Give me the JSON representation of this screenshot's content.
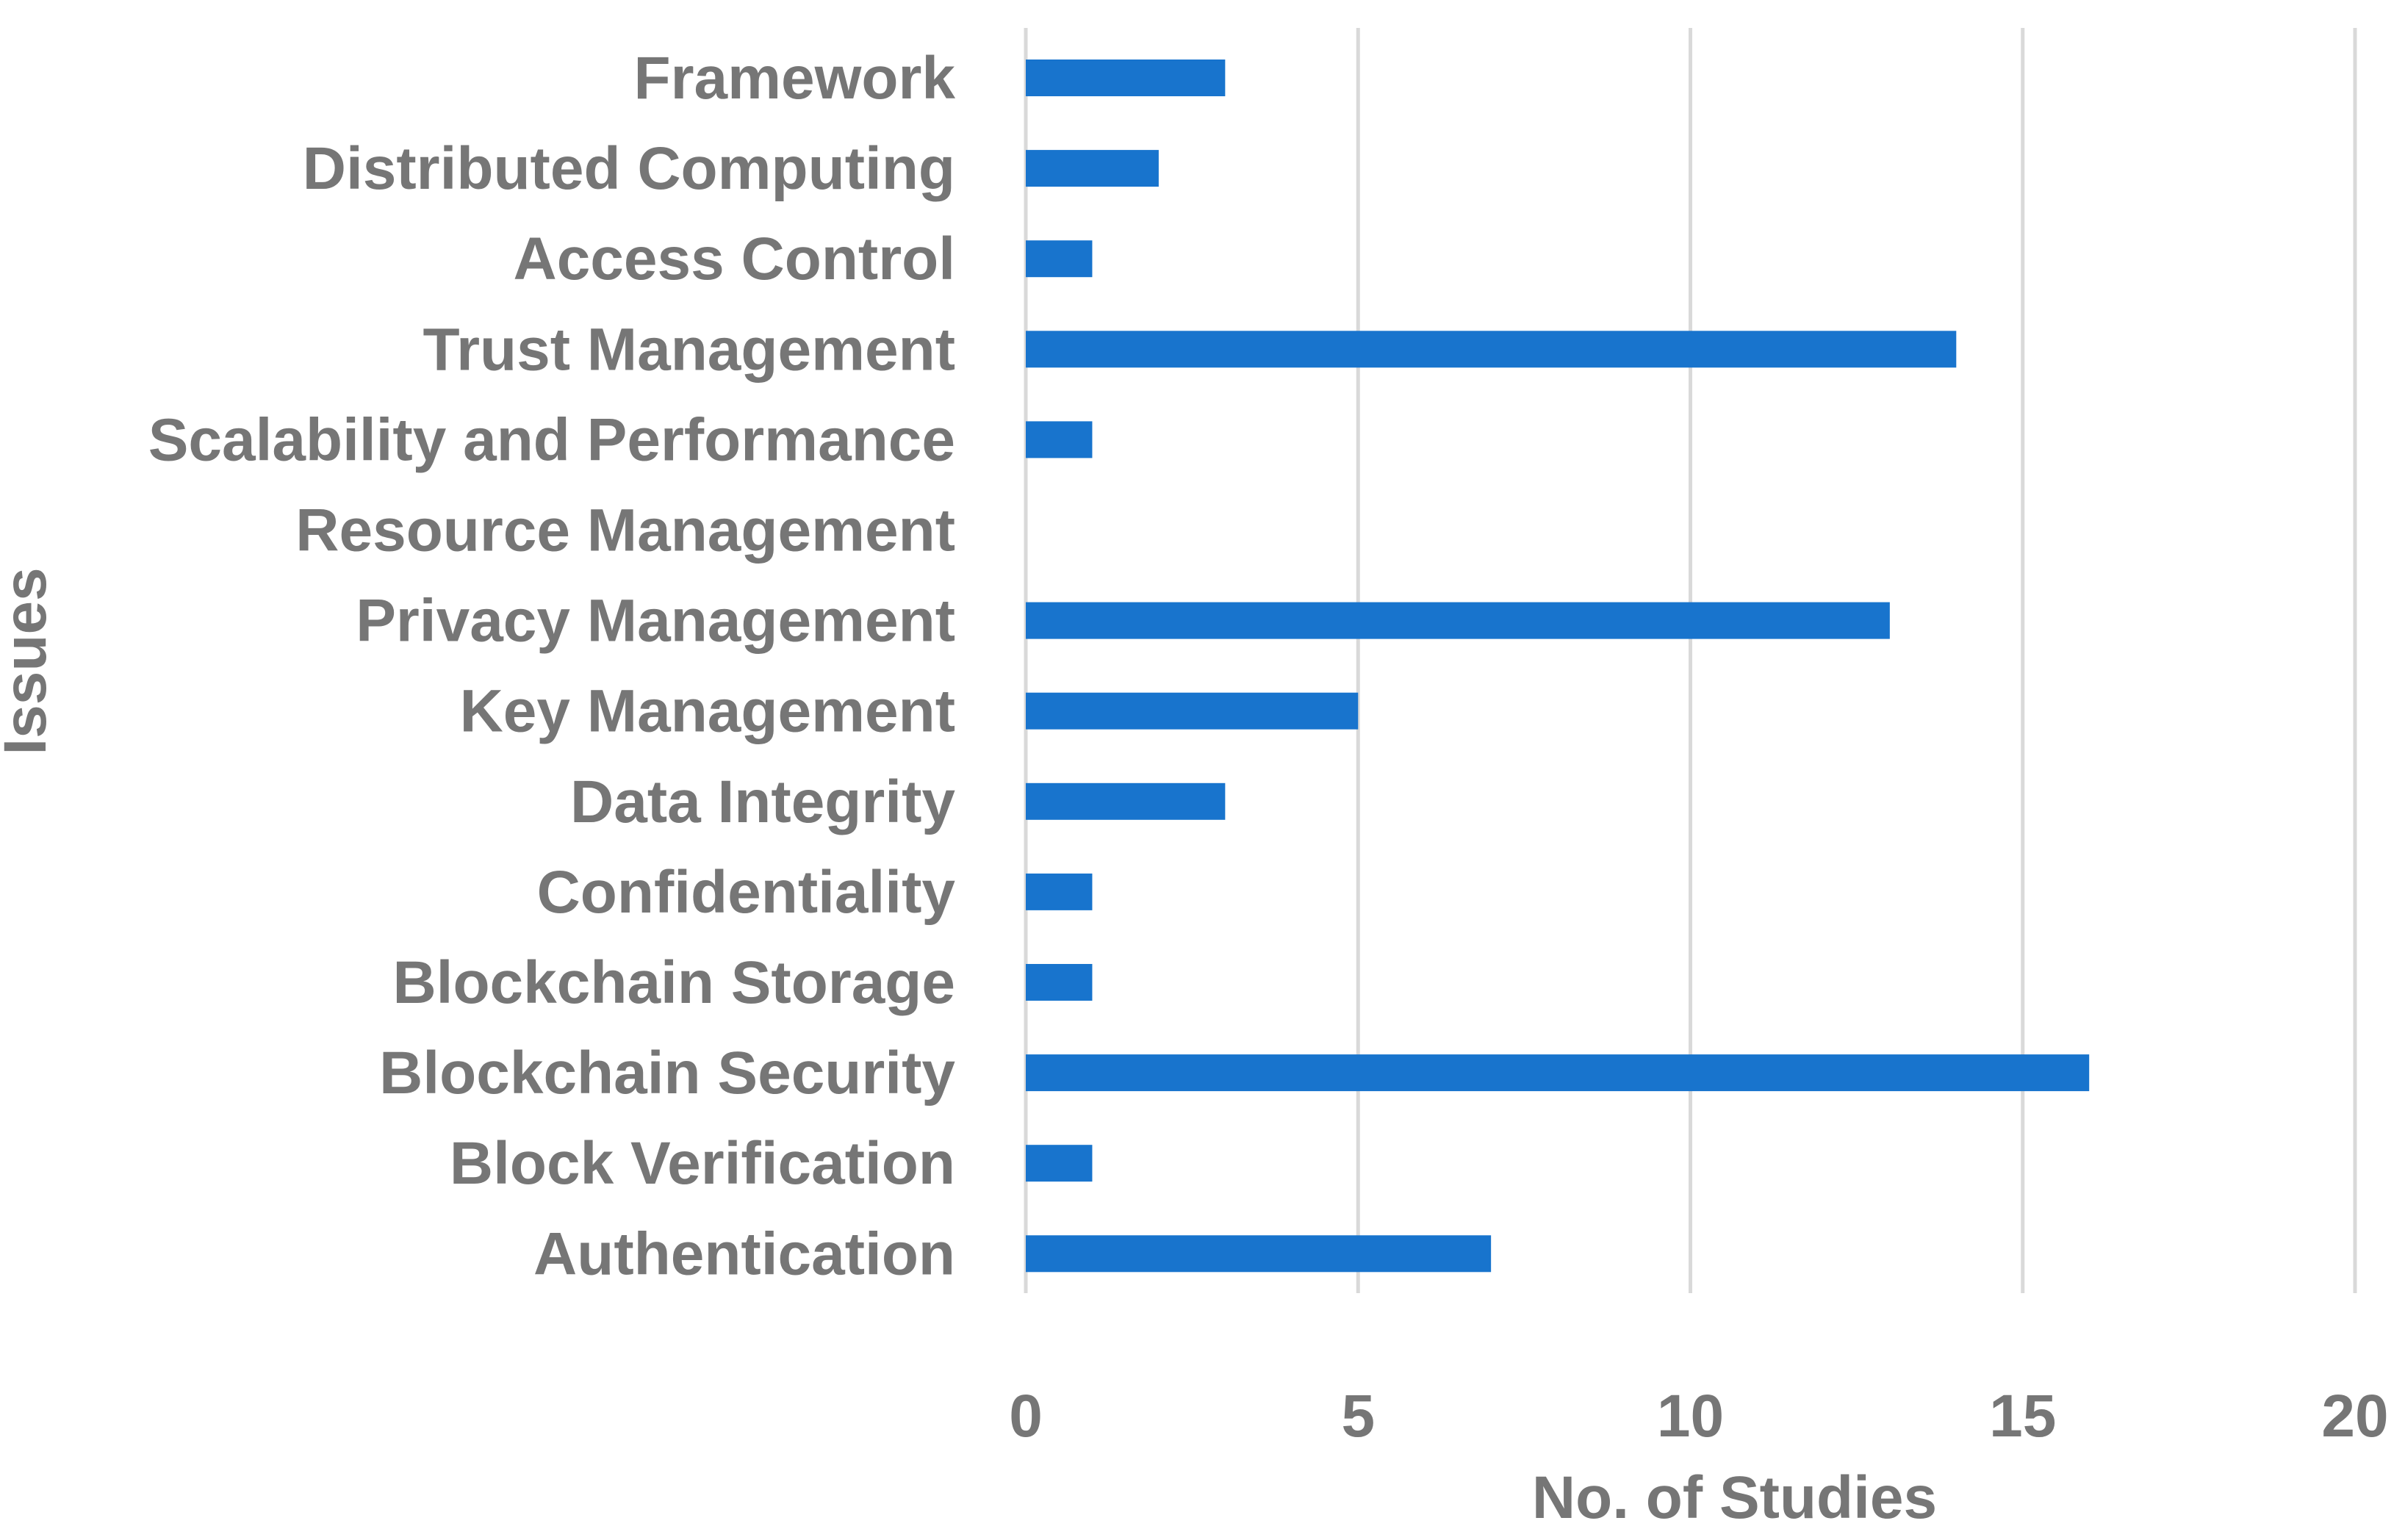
{
  "chart_data": {
    "type": "bar",
    "orientation": "horizontal",
    "categories": [
      "Framework",
      "Distributed Computing",
      "Access Control",
      "Trust Management",
      "Scalability and Performance",
      "Resource Management",
      "Privacy Management",
      "Key Management",
      "Data Integrity",
      "Confidentiality",
      "Blockchain Storage",
      "Blockchain Security",
      "Block Verification",
      "Authentication"
    ],
    "values": [
      3,
      2,
      1,
      14,
      1,
      0,
      13,
      5,
      3,
      1,
      1,
      16,
      1,
      7
    ],
    "xlabel": "No. of Studies",
    "ylabel": "Issues",
    "xlim": [
      0,
      20
    ],
    "xticks": [
      0,
      5,
      10,
      15,
      20
    ],
    "grid": "vertical",
    "legend": "none",
    "bar_color": "#1874CD",
    "text_color": "#767676",
    "grid_color": "#D9D9D9"
  }
}
